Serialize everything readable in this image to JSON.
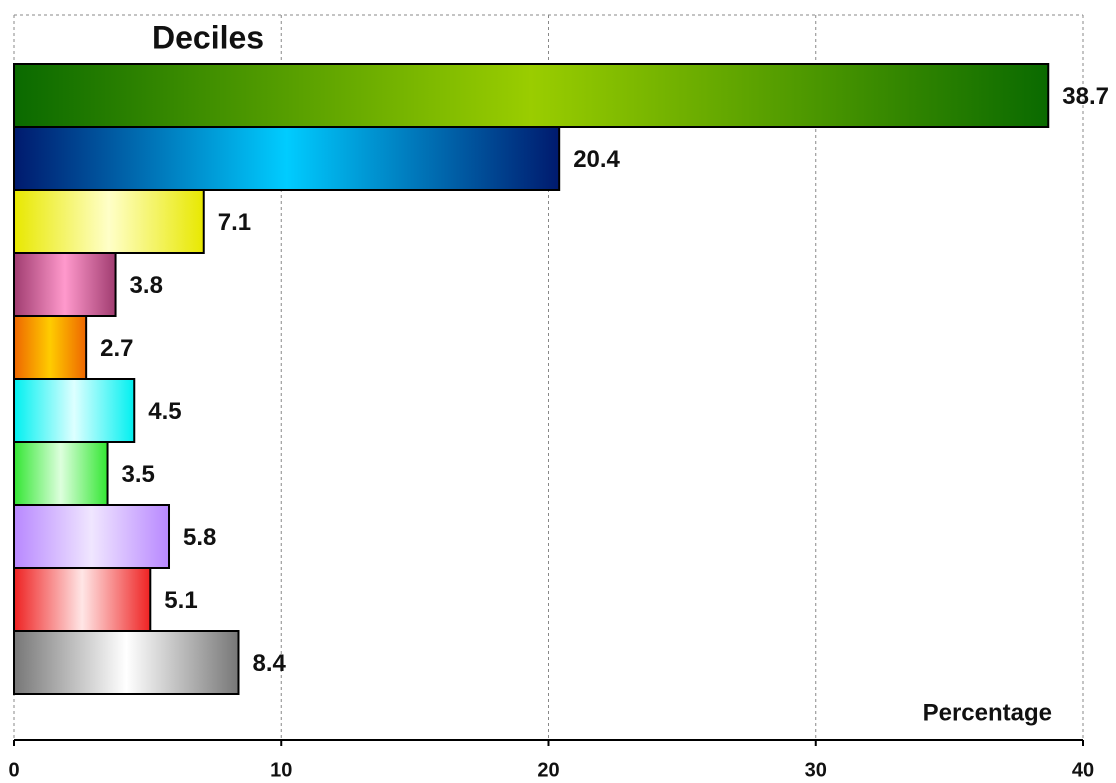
{
  "chart_data": {
    "type": "barh",
    "title": "Deciles",
    "xlabel": "Percentage",
    "values": [
      38.7,
      20.4,
      7.1,
      3.8,
      2.7,
      4.5,
      3.5,
      5.8,
      5.1,
      8.4
    ],
    "colors": [
      [
        "#0a6a00",
        "#9acd00"
      ],
      [
        "#001a6e",
        "#00ccff"
      ],
      [
        "#e8e800",
        "#ffffc8"
      ],
      [
        "#a03c70",
        "#ff99cc"
      ],
      [
        "#ee6600",
        "#ffcc00"
      ],
      [
        "#00f0f0",
        "#ddffff"
      ],
      [
        "#33e633",
        "#ddffdd"
      ],
      [
        "#b888ff",
        "#f0e6ff"
      ],
      [
        "#ee2222",
        "#ffe6e6"
      ],
      [
        "#777777",
        "#ffffff"
      ]
    ],
    "xlim": [
      0,
      40
    ],
    "xticks": [
      0,
      10,
      20,
      30,
      40
    ],
    "grid": true
  }
}
